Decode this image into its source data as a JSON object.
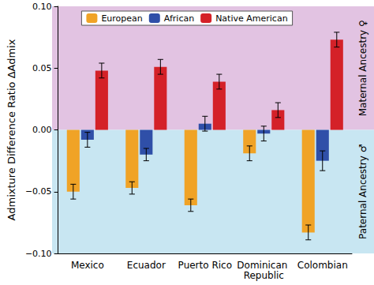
{
  "chart_data": {
    "type": "bar",
    "y_label": "Admixture Difference Ratio ΔAdmix",
    "categories": [
      "Mexico",
      "Ecuador",
      "Puerto Rico",
      "Dominican Republic",
      "Colombian"
    ],
    "series": [
      {
        "name": "European",
        "color": "#f0a326",
        "values": [
          -0.05,
          -0.047,
          -0.061,
          -0.019,
          -0.083
        ],
        "errors": [
          0.006,
          0.005,
          0.005,
          0.006,
          0.006
        ]
      },
      {
        "name": "African",
        "color": "#2f4fa8",
        "values": [
          -0.008,
          -0.02,
          0.005,
          -0.003,
          -0.025
        ],
        "errors": [
          0.006,
          0.005,
          0.006,
          0.006,
          0.008
        ]
      },
      {
        "name": "Native American",
        "color": "#d42128",
        "values": [
          0.048,
          0.051,
          0.039,
          0.016,
          0.073
        ],
        "errors": [
          0.006,
          0.006,
          0.006,
          0.006,
          0.006
        ]
      }
    ],
    "ylim": [
      -0.1,
      0.1
    ],
    "yticks": [
      {
        "value": -0.1,
        "label": "−0.10"
      },
      {
        "value": -0.05,
        "label": "−0.05"
      },
      {
        "value": 0.0,
        "label": "0.00"
      },
      {
        "value": 0.05,
        "label": "0.05"
      },
      {
        "value": 0.1,
        "label": "0.10"
      }
    ],
    "annotations": [
      {
        "text": "Maternal Ancestry ♀",
        "y_range": [
          0.0,
          0.1
        ],
        "color": "#e2c3e2"
      },
      {
        "text": "Paternal Ancestry ♂",
        "y_range": [
          -0.1,
          0.0
        ],
        "color": "#c8e6f2"
      }
    ],
    "legend": "top",
    "grid": false
  }
}
